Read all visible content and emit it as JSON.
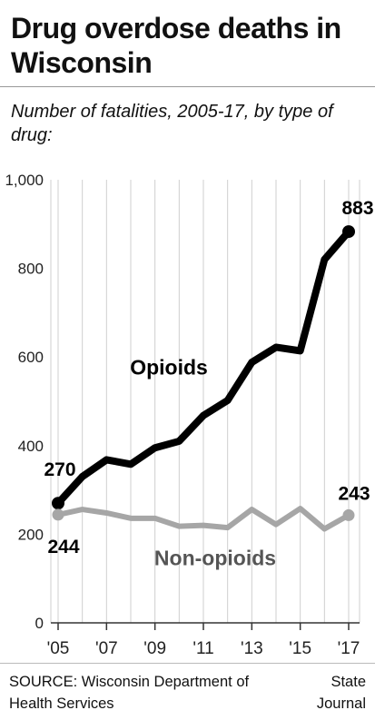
{
  "header": {
    "title": "Drug overdose deaths in Wisconsin",
    "subtitle": "Number of fatalities, 2005-17, by type of drug:"
  },
  "footer": {
    "source": "SOURCE: Wisconsin Department of Health Services",
    "credit": "State Journal"
  },
  "chart_data": {
    "type": "line",
    "title": "Drug overdose deaths in Wisconsin",
    "subtitle": "Number of fatalities, 2005-17, by type of drug:",
    "x": [
      2005,
      2006,
      2007,
      2008,
      2009,
      2010,
      2011,
      2012,
      2013,
      2014,
      2015,
      2016,
      2017
    ],
    "x_tick_labels": [
      "'05",
      "'07",
      "'09",
      "'11",
      "'13",
      "'15",
      "'17"
    ],
    "x_tick_values": [
      2005,
      2007,
      2009,
      2011,
      2013,
      2015,
      2017
    ],
    "y_tick_labels": [
      "0",
      "200",
      "400",
      "600",
      "800",
      "1,000"
    ],
    "y_tick_values": [
      0,
      200,
      400,
      600,
      800,
      1000
    ],
    "ylim": [
      0,
      1000
    ],
    "grid": "vertical",
    "series": [
      {
        "name": "Opioids",
        "color": "#000000",
        "values": [
          270,
          330,
          368,
          358,
          395,
          410,
          468,
          502,
          588,
          622,
          614,
          820,
          883
        ],
        "start_label": "270",
        "end_label": "883"
      },
      {
        "name": "Non-opioids",
        "color": "#a6a6a6",
        "values": [
          244,
          256,
          248,
          236,
          236,
          218,
          220,
          215,
          256,
          222,
          258,
          212,
          243
        ],
        "start_label": "244",
        "end_label": "243"
      }
    ]
  }
}
